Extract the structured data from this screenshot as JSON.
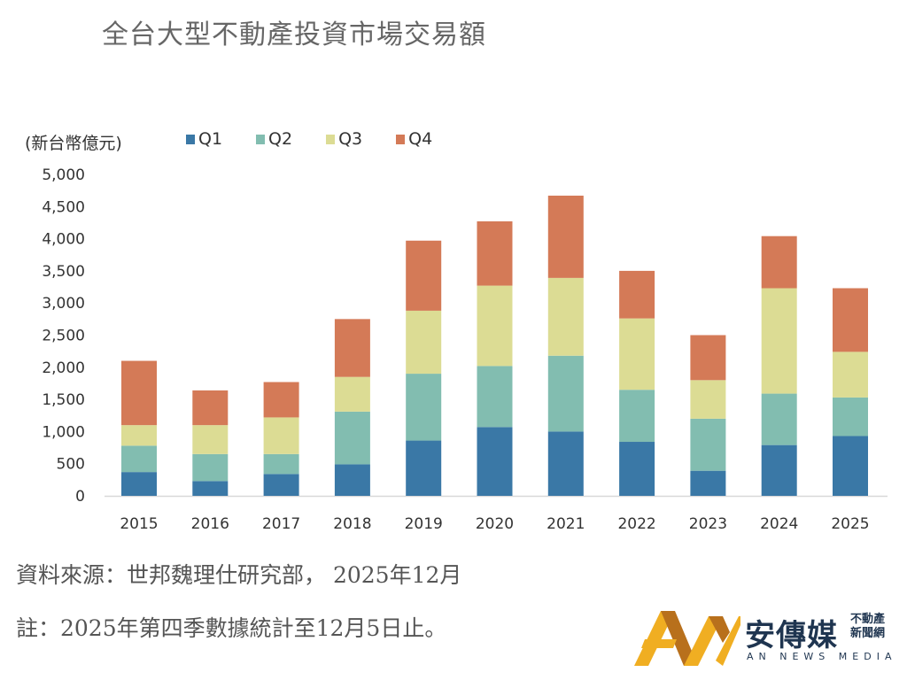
{
  "chart_data": {
    "type": "bar",
    "stacked": true,
    "title": "全台大型不動產投資市場交易額",
    "ylabel": "(新台幣億元)",
    "xlabel": "",
    "categories": [
      "2015",
      "2016",
      "2017",
      "2018",
      "2019",
      "2020",
      "2021",
      "2022",
      "2023",
      "2024",
      "2025"
    ],
    "series": [
      {
        "name": "Q1",
        "color": "#3a78a6",
        "values": [
          370,
          230,
          340,
          490,
          860,
          1070,
          1000,
          840,
          390,
          790,
          930
        ]
      },
      {
        "name": "Q2",
        "color": "#82bdb0",
        "values": [
          410,
          420,
          310,
          820,
          1040,
          950,
          1180,
          810,
          810,
          800,
          600
        ]
      },
      {
        "name": "Q3",
        "color": "#dcdc94",
        "values": [
          320,
          450,
          570,
          540,
          980,
          1250,
          1210,
          1110,
          600,
          1640,
          710
        ]
      },
      {
        "name": "Q4",
        "color": "#d47a57",
        "values": [
          1000,
          540,
          550,
          900,
          1090,
          1000,
          1280,
          740,
          700,
          810,
          990
        ]
      }
    ],
    "ylim": [
      0,
      5000
    ],
    "yticks": [
      "0",
      "500",
      "1,000",
      "1,500",
      "2,000",
      "2,500",
      "3,000",
      "3,500",
      "4,000",
      "4,500",
      "5,000"
    ],
    "grid": false,
    "legend_position": "top"
  },
  "footer": {
    "source": "資料來源：世邦魏理仕研究部， 2025年12月",
    "note": "註：2025年第四季數據統計至12月5日止。"
  },
  "logo": {
    "name_cn": "安傳媒",
    "sub_line1": "不動產",
    "sub_line2": "新聞網",
    "name_en": "AN NEWS MEDIA"
  }
}
